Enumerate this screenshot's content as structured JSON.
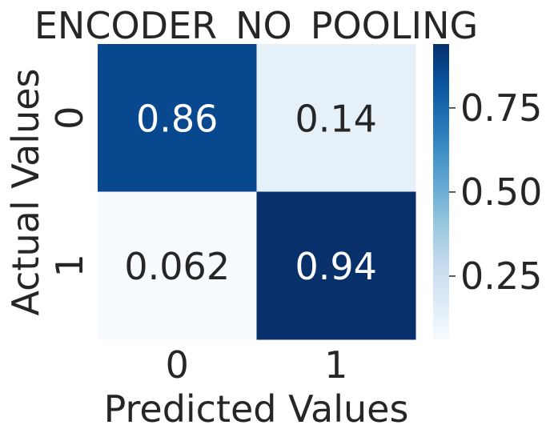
{
  "chart_data": {
    "type": "heatmap",
    "title": "ENCODER_NO_POOLING",
    "xlabel": "Predicted Values",
    "ylabel": "Actual Values",
    "x_categories": [
      "0",
      "1"
    ],
    "y_categories": [
      "0",
      "1"
    ],
    "cells": [
      [
        {
          "value": 0.86,
          "label": "0.86"
        },
        {
          "value": 0.14,
          "label": "0.14"
        }
      ],
      [
        {
          "value": 0.062,
          "label": "0.062"
        },
        {
          "value": 0.94,
          "label": "0.94"
        }
      ]
    ],
    "colormap": "Blues",
    "colorbar": {
      "range": [
        0.062,
        0.94
      ],
      "ticks": [
        0.25,
        0.5,
        0.75
      ],
      "tick_labels": [
        "0.25",
        "0.50",
        "0.75"
      ]
    },
    "colors": {
      "text_dark": "#262626",
      "text_light": "#ffffff"
    }
  }
}
